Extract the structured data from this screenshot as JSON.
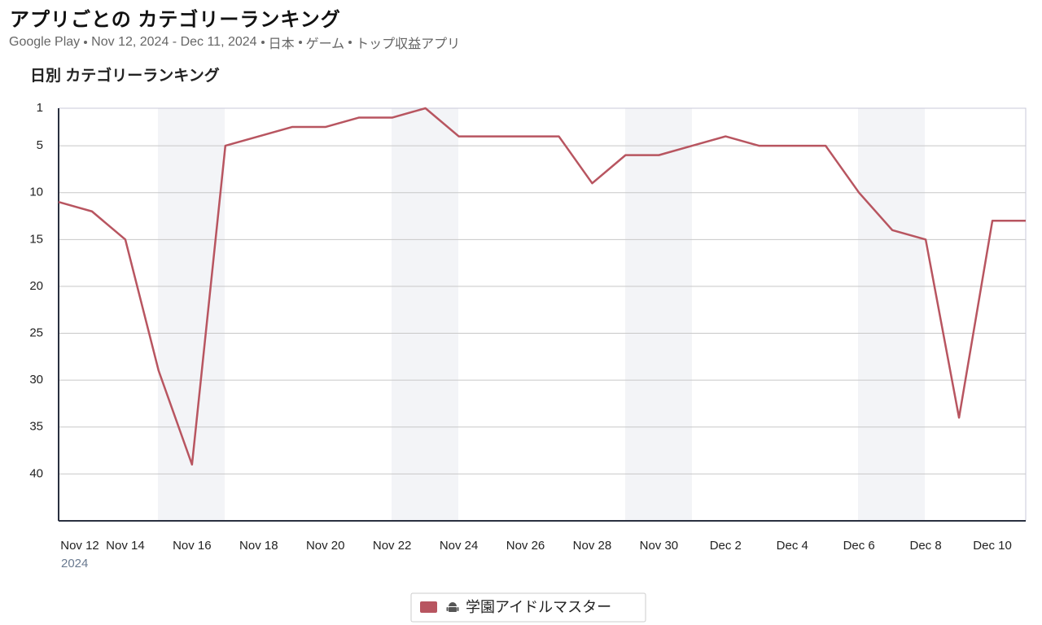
{
  "header": {
    "title": "アプリごとの カテゴリーランキング",
    "subtitle": [
      "Google Play",
      "Nov 12, 2024 - Dec 11, 2024",
      "日本",
      "ゲーム",
      "トップ収益アプリ"
    ]
  },
  "chart_data": {
    "type": "line",
    "title": "日別 カテゴリーランキング",
    "categories": [
      "Nov 12",
      null,
      "Nov 14",
      null,
      "Nov 16",
      null,
      "Nov 18",
      null,
      "Nov 20",
      null,
      "Nov 22",
      null,
      "Nov 24",
      null,
      "Nov 26",
      null,
      "Nov 28",
      null,
      "Nov 30",
      null,
      "Dec 2",
      null,
      "Dec 4",
      null,
      "Dec 6",
      null,
      "Dec 8",
      null,
      "Dec 10",
      null
    ],
    "year_label": "2024",
    "series": [
      {
        "name": "学園アイドルマスター",
        "color": "#b85560",
        "values": [
          11,
          12,
          15,
          29,
          39,
          5,
          4,
          3,
          3,
          2,
          2,
          1,
          4,
          4,
          4,
          4,
          9,
          6,
          6,
          5,
          4,
          5,
          5,
          5,
          10,
          14,
          15,
          34,
          13,
          13
        ]
      }
    ],
    "ylim": [
      1,
      45
    ],
    "invert_y": true,
    "yticks": [
      1,
      5,
      10,
      15,
      20,
      25,
      30,
      35,
      40
    ],
    "grid": true
  }
}
